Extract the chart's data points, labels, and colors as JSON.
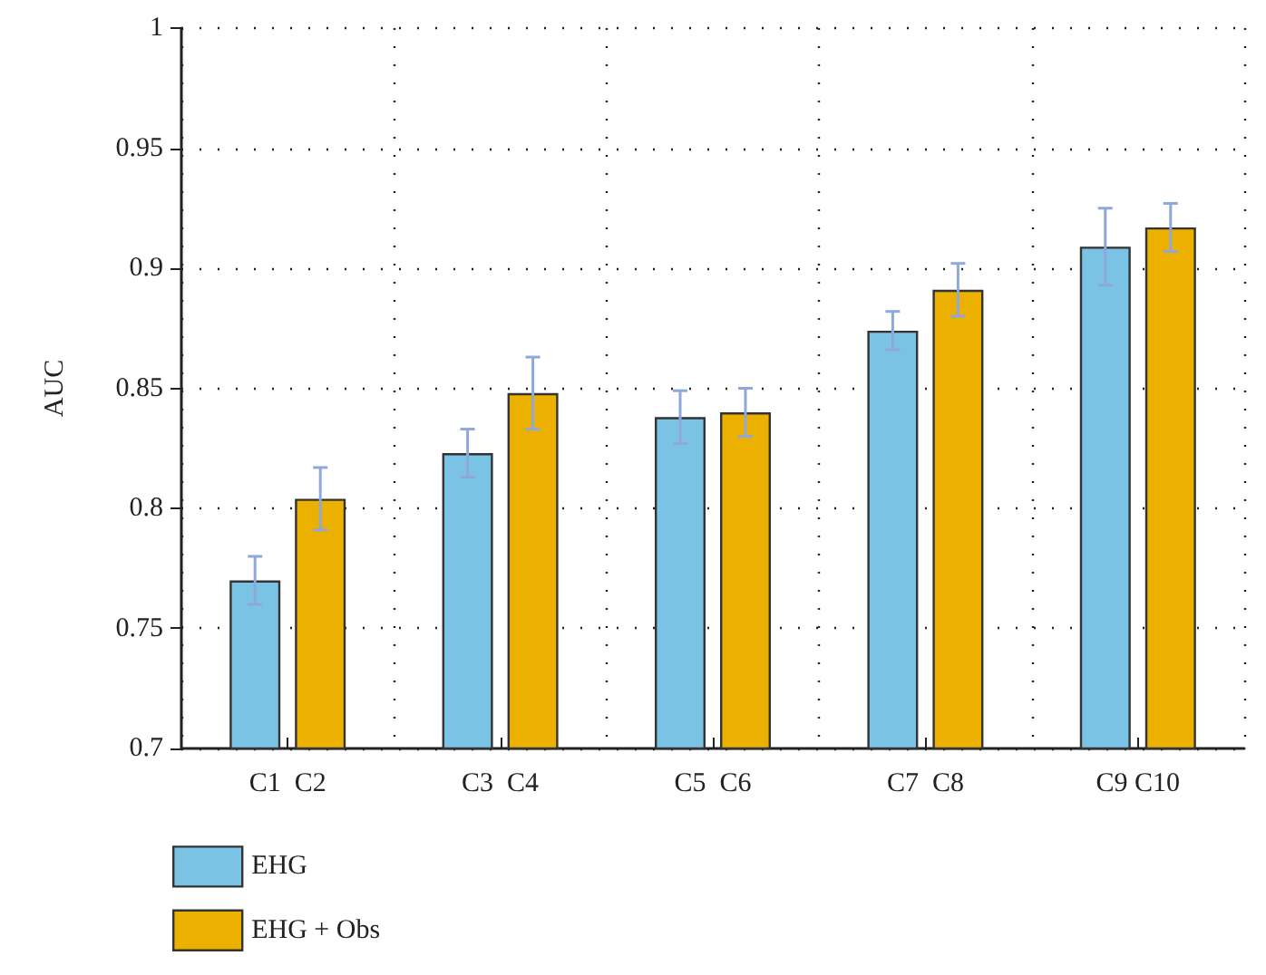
{
  "chart_data": {
    "type": "bar",
    "ylabel": "AUC",
    "categories": [
      "C1  C2",
      "C3  C4",
      "C5  C6",
      "C7  C8",
      "C9 C10"
    ],
    "series": [
      {
        "name": "EHG",
        "color": "#7ac3e4",
        "values": [
          0.77,
          0.823,
          0.838,
          0.874,
          0.909
        ],
        "errors": [
          0.01,
          0.01,
          0.011,
          0.008,
          0.016
        ]
      },
      {
        "name": "EHG + Obs",
        "color": "#ecb000",
        "values": [
          0.804,
          0.848,
          0.84,
          0.891,
          0.917
        ],
        "errors": [
          0.013,
          0.015,
          0.01,
          0.011,
          0.01
        ]
      }
    ],
    "ylim": [
      0.7,
      1
    ],
    "yticks": [
      0.7,
      0.75,
      0.8,
      0.85,
      0.9,
      0.95,
      1
    ],
    "grid": true,
    "legend": "bottom left"
  }
}
